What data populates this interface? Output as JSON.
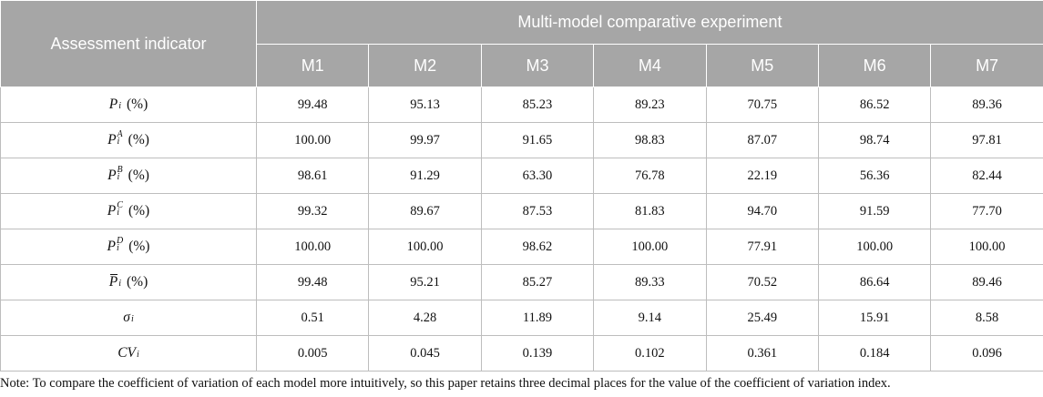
{
  "header": {
    "indicator_label": "Assessment indicator",
    "group_label": "Multi-model comparative experiment",
    "models": [
      "M1",
      "M2",
      "M3",
      "M4",
      "M5",
      "M6",
      "M7"
    ]
  },
  "rows": [
    {
      "symbol": "P",
      "sub": "i",
      "sup": "",
      "bar": false,
      "unit": "(%)",
      "values": [
        "99.48",
        "95.13",
        "85.23",
        "89.23",
        "70.75",
        "86.52",
        "89.36"
      ]
    },
    {
      "symbol": "P",
      "sub": "i",
      "sup": "A",
      "bar": false,
      "unit": "(%)",
      "values": [
        "100.00",
        "99.97",
        "91.65",
        "98.83",
        "87.07",
        "98.74",
        "97.81"
      ]
    },
    {
      "symbol": "P",
      "sub": "i",
      "sup": "B",
      "bar": false,
      "unit": "(%)",
      "values": [
        "98.61",
        "91.29",
        "63.30",
        "76.78",
        "22.19",
        "56.36",
        "82.44"
      ]
    },
    {
      "symbol": "P",
      "sub": "i",
      "sup": "C",
      "bar": false,
      "unit": "(%)",
      "values": [
        "99.32",
        "89.67",
        "87.53",
        "81.83",
        "94.70",
        "91.59",
        "77.70"
      ]
    },
    {
      "symbol": "P",
      "sub": "i",
      "sup": "D",
      "bar": false,
      "unit": "(%)",
      "values": [
        "100.00",
        "100.00",
        "98.62",
        "100.00",
        "77.91",
        "100.00",
        "100.00"
      ]
    },
    {
      "symbol": "P",
      "sub": "i",
      "sup": "",
      "bar": true,
      "unit": "(%)",
      "values": [
        "99.48",
        "95.21",
        "85.27",
        "89.33",
        "70.52",
        "86.64",
        "89.46"
      ]
    },
    {
      "symbol": "σ",
      "sub": "i",
      "sup": "",
      "bar": false,
      "unit": "",
      "values": [
        "0.51",
        "4.28",
        "11.89",
        "9.14",
        "25.49",
        "15.91",
        "8.58"
      ]
    },
    {
      "symbol": "CV",
      "sub": "i",
      "sup": "",
      "bar": false,
      "unit": "",
      "values": [
        "0.005",
        "0.045",
        "0.139",
        "0.102",
        "0.361",
        "0.184",
        "0.096"
      ]
    }
  ],
  "note": "Note: To compare the coefficient of variation of each model more intuitively, so this paper retains three decimal places for the value of the coefficient of variation index."
}
